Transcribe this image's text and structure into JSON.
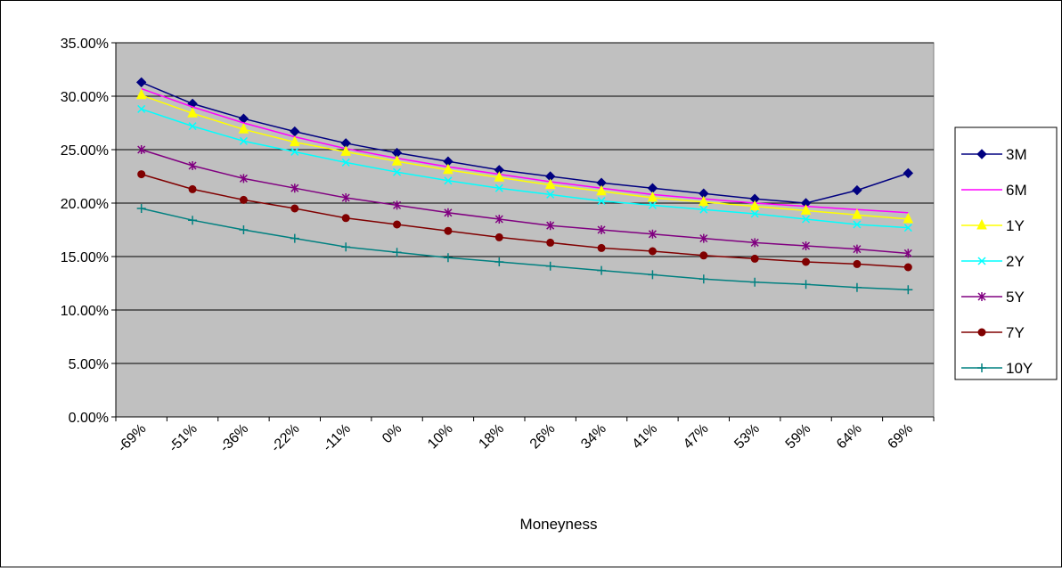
{
  "chart_data": {
    "type": "line",
    "title": "",
    "xlabel": "Moneyness",
    "ylabel": "",
    "ylim": [
      0,
      0.35
    ],
    "y_ticks": [
      "0.00%",
      "5.00%",
      "10.00%",
      "15.00%",
      "20.00%",
      "25.00%",
      "30.00%",
      "35.00%"
    ],
    "y_tick_values": [
      0,
      0.05,
      0.1,
      0.15,
      0.2,
      0.25,
      0.3,
      0.35
    ],
    "categories": [
      "-69%",
      "-51%",
      "-36%",
      "-22%",
      "-11%",
      "0%",
      "10%",
      "18%",
      "26%",
      "34%",
      "41%",
      "47%",
      "53%",
      "59%",
      "64%",
      "69%"
    ],
    "grid": "horizontal",
    "legend_position": "right",
    "plot_background": "#c0c0c0",
    "series": [
      {
        "name": "3M",
        "color": "#000080",
        "marker": "diamond",
        "values": [
          0.313,
          0.293,
          0.279,
          0.267,
          0.256,
          0.247,
          0.239,
          0.231,
          0.225,
          0.219,
          0.214,
          0.209,
          0.204,
          0.2,
          0.212,
          0.228
        ]
      },
      {
        "name": "6M",
        "color": "#ff00ff",
        "marker": "none",
        "values": [
          0.307,
          0.29,
          0.275,
          0.262,
          0.251,
          0.242,
          0.234,
          0.227,
          0.22,
          0.214,
          0.208,
          0.204,
          0.2,
          0.197,
          0.194,
          0.191
        ]
      },
      {
        "name": "1Y",
        "color": "#ffff00",
        "marker": "triangle",
        "values": [
          0.301,
          0.284,
          0.269,
          0.257,
          0.248,
          0.239,
          0.231,
          0.224,
          0.217,
          0.211,
          0.205,
          0.201,
          0.197,
          0.193,
          0.189,
          0.185
        ]
      },
      {
        "name": "2Y",
        "color": "#00ffff",
        "marker": "x",
        "values": [
          0.288,
          0.272,
          0.258,
          0.248,
          0.238,
          0.229,
          0.221,
          0.214,
          0.208,
          0.202,
          0.198,
          0.194,
          0.19,
          0.185,
          0.18,
          0.177
        ]
      },
      {
        "name": "5Y",
        "color": "#800080",
        "marker": "star",
        "values": [
          0.25,
          0.235,
          0.223,
          0.214,
          0.205,
          0.198,
          0.191,
          0.185,
          0.179,
          0.175,
          0.171,
          0.167,
          0.163,
          0.16,
          0.157,
          0.153
        ]
      },
      {
        "name": "7Y",
        "color": "#800000",
        "marker": "circle",
        "values": [
          0.227,
          0.213,
          0.203,
          0.195,
          0.186,
          0.18,
          0.174,
          0.168,
          0.163,
          0.158,
          0.155,
          0.151,
          0.148,
          0.145,
          0.143,
          0.14
        ]
      },
      {
        "name": "10Y",
        "color": "#008080",
        "marker": "plus",
        "values": [
          0.195,
          0.184,
          0.175,
          0.167,
          0.159,
          0.154,
          0.149,
          0.145,
          0.141,
          0.137,
          0.133,
          0.129,
          0.126,
          0.124,
          0.121,
          0.119
        ]
      }
    ]
  }
}
